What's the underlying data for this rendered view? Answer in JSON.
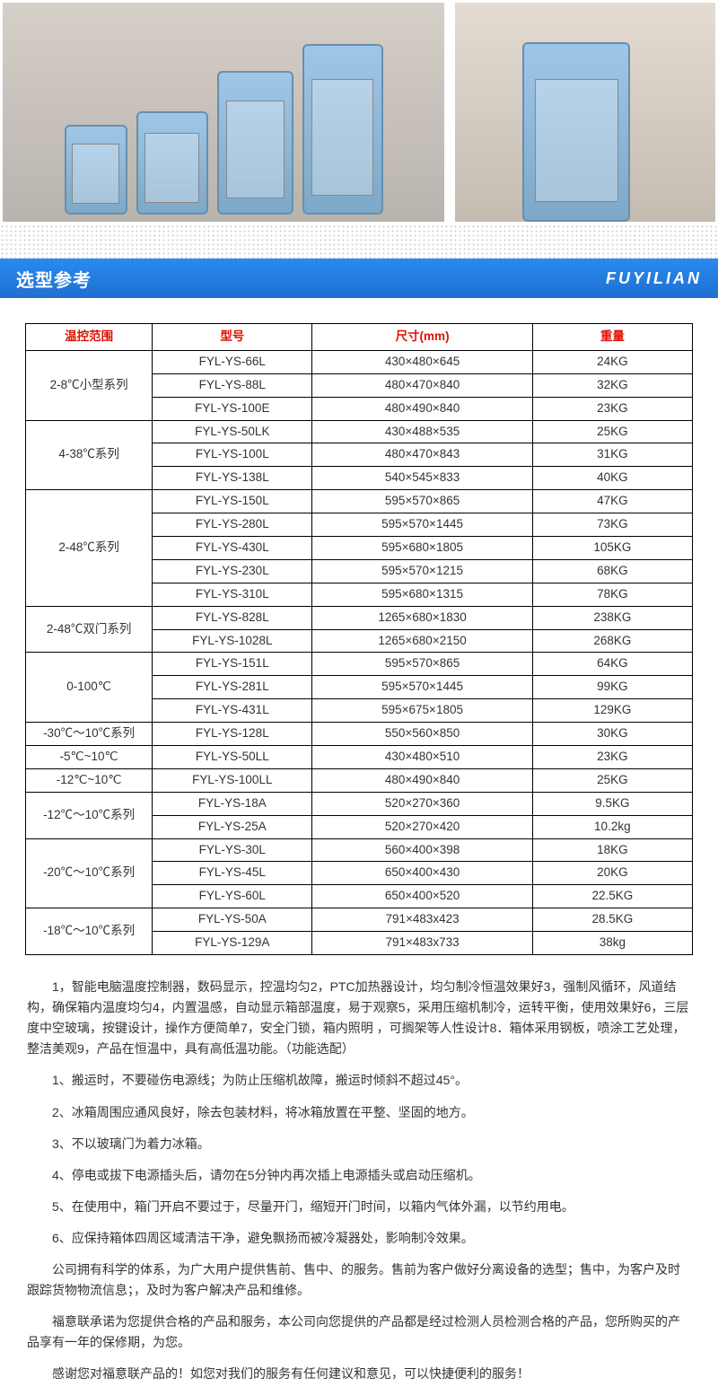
{
  "section": {
    "title": "选型参考",
    "brand": "FUYILIAN"
  },
  "table": {
    "headers": [
      "温控范围",
      "型号",
      "尺寸(mm)",
      "重量"
    ],
    "groups": [
      {
        "range": "2-8℃小型系列",
        "rows": [
          {
            "model": "FYL-YS-66L",
            "size": "430×480×645",
            "weight": "24KG"
          },
          {
            "model": "FYL-YS-88L",
            "size": "480×470×840",
            "weight": "32KG"
          },
          {
            "model": "FYL-YS-100E",
            "size": "480×490×840",
            "weight": "23KG"
          }
        ]
      },
      {
        "range": "4-38℃系列",
        "rows": [
          {
            "model": "FYL-YS-50LK",
            "size": "430×488×535",
            "weight": "25KG"
          },
          {
            "model": "FYL-YS-100L",
            "size": "480×470×843",
            "weight": "31KG"
          },
          {
            "model": "FYL-YS-138L",
            "size": "540×545×833",
            "weight": "40KG"
          }
        ]
      },
      {
        "range": "2-48℃系列",
        "rows": [
          {
            "model": "FYL-YS-150L",
            "size": "595×570×865",
            "weight": "47KG"
          },
          {
            "model": "FYL-YS-280L",
            "size": "595×570×1445",
            "weight": "73KG"
          },
          {
            "model": "FYL-YS-430L",
            "size": "595×680×1805",
            "weight": "105KG"
          },
          {
            "model": "FYL-YS-230L",
            "size": "595×570×1215",
            "weight": "68KG"
          },
          {
            "model": "FYL-YS-310L",
            "size": "595×680×1315",
            "weight": "78KG"
          }
        ]
      },
      {
        "range": "2-48℃双门系列",
        "rows": [
          {
            "model": "FYL-YS-828L",
            "size": "1265×680×1830",
            "weight": "238KG"
          },
          {
            "model": "FYL-YS-1028L",
            "size": "1265×680×2150",
            "weight": "268KG"
          }
        ]
      },
      {
        "range": "0-100℃",
        "rows": [
          {
            "model": "FYL-YS-151L",
            "size": "595×570×865",
            "weight": "64KG"
          },
          {
            "model": "FYL-YS-281L",
            "size": "595×570×1445",
            "weight": "99KG"
          },
          {
            "model": "FYL-YS-431L",
            "size": "595×675×1805",
            "weight": "129KG"
          }
        ]
      },
      {
        "range": "-30℃～10℃系列",
        "rows": [
          {
            "model": "FYL-YS-128L",
            "size": "550×560×850",
            "weight": "30KG"
          }
        ]
      },
      {
        "range": "-5℃~10℃",
        "rows": [
          {
            "model": "FYL-YS-50LL",
            "size": "430×480×510",
            "weight": "23KG"
          }
        ]
      },
      {
        "range": "-12℃~10℃",
        "rows": [
          {
            "model": "FYL-YS-100LL",
            "size": "480×490×840",
            "weight": "25KG"
          }
        ]
      },
      {
        "range": "-12℃～10℃系列",
        "rows": [
          {
            "model": "FYL-YS-18A",
            "size": "520×270×360",
            "weight": "9.5KG"
          },
          {
            "model": "FYL-YS-25A",
            "size": "520×270×420",
            "weight": "10.2kg"
          }
        ]
      },
      {
        "range": "-20℃～10℃系列",
        "rows": [
          {
            "model": "FYL-YS-30L",
            "size": "560×400×398",
            "weight": "18KG"
          },
          {
            "model": "FYL-YS-45L",
            "size": "650×400×430",
            "weight": "20KG"
          },
          {
            "model": "FYL-YS-60L",
            "size": "650×400×520",
            "weight": "22.5KG"
          }
        ]
      },
      {
        "range": "-18℃～10℃系列",
        "rows": [
          {
            "model": "FYL-YS-50A",
            "size": "791×483x423",
            "weight": "28.5KG"
          },
          {
            "model": "FYL-YS-129A",
            "size": "791×483x733",
            "weight": "38kg"
          }
        ]
      }
    ]
  },
  "notes": {
    "p1": "1，智能电脑温度控制器，数码显示，控温均匀2，PTC加热器设计，均匀制冷恒温效果好3，强制风循环，风道结构，确保箱内温度均匀4，内置温感，自动显示箱部温度，易于观察5，采用压缩机制冷，运转平衡，使用效果好6，三层度中空玻璃，按键设计，操作方便简单7，安全门锁，箱内照明 ，可搁架等人性设计8．箱体采用钢板，喷涂工艺处理，整洁美观9，产品在恒温中，具有高低温功能。（功能选配）",
    "p2": "1、搬运时，不要碰伤电源线；为防止压缩机故障，搬运时倾斜不超过45°。",
    "p3": "2、冰箱周围应通风良好，除去包装材料，将冰箱放置在平整、坚固的地方。",
    "p4": "3、不以玻璃门为着力冰箱。",
    "p5": "4、停电或拔下电源插头后，请勿在5分钟内再次插上电源插头或启动压缩机。",
    "p6": "5、在使用中，箱门开启不要过于，尽量开门，缩短开门时间，以箱内气体外漏，以节约用电。",
    "p7": "6、应保持箱体四周区域清洁干净，避免飘扬而被冷凝器处，影响制冷效果。",
    "p8": "公司拥有科学的体系，为广大用户提供售前、售中、的服务。售前为客户做好分离设备的选型；售中，为客户及时跟踪货物物流信息；，及时为客户解决产品和维修。",
    "p9": "福意联承诺为您提供合格的产品和服务，本公司向您提供的产品都是经过检测人员检测合格的产品，您所购买的产品享有一年的保修期，为您。",
    "p10": "感谢您对福意联产品的！如您对我们的服务有任何建议和意见，可以快捷便利的服务！"
  }
}
